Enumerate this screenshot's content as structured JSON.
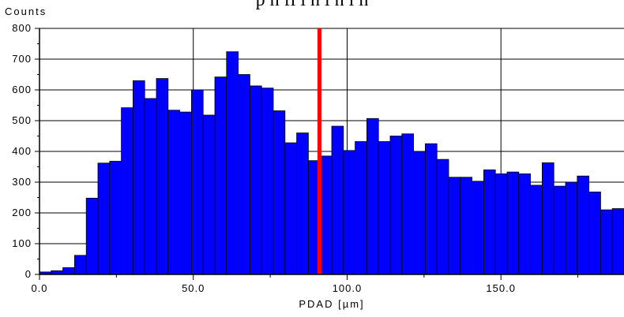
{
  "caption": "p                                    h         fi      i          h      l        h           l   h",
  "chart_data": {
    "type": "bar",
    "title": "",
    "ylabel": "Counts",
    "xlabel": "PDAD [µm]",
    "xlim": [
      0,
      190
    ],
    "ylim": [
      0,
      800
    ],
    "bin_width": 3.8,
    "values": [
      8,
      12,
      22,
      62,
      248,
      362,
      368,
      542,
      630,
      572,
      637,
      534,
      528,
      600,
      518,
      642,
      724,
      650,
      613,
      606,
      532,
      428,
      460,
      370,
      385,
      482,
      403,
      432,
      507,
      432,
      450,
      457,
      400,
      425,
      374,
      316,
      316,
      303,
      340,
      327,
      333,
      327,
      290,
      363,
      287,
      300,
      320,
      268,
      210,
      214
    ],
    "x_ticks": [
      {
        "value": 0,
        "label": "0.0"
      },
      {
        "value": 50,
        "label": "50.0"
      },
      {
        "value": 100,
        "label": "100.0"
      },
      {
        "value": 150,
        "label": "150.0"
      }
    ],
    "y_ticks": [
      {
        "value": 0,
        "label": "0"
      },
      {
        "value": 100,
        "label": "100"
      },
      {
        "value": 200,
        "label": "200"
      },
      {
        "value": 300,
        "label": "300"
      },
      {
        "value": 400,
        "label": "400"
      },
      {
        "value": 500,
        "label": "500"
      },
      {
        "value": 600,
        "label": "600"
      },
      {
        "value": 700,
        "label": "700"
      },
      {
        "value": 800,
        "label": "800"
      }
    ],
    "marker_x": 91,
    "bar_color": "#0000ff",
    "marker_color": "#ff0000",
    "grid": true
  }
}
